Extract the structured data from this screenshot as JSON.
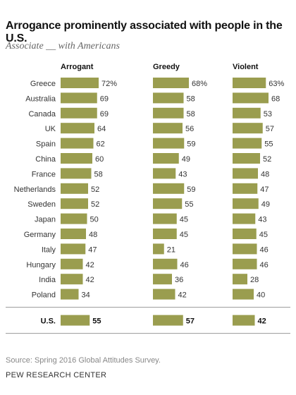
{
  "title": "Arrogance prominently associated with people in the U.S.",
  "subtitle": "Associate __ with Americans",
  "chart_data": {
    "type": "bar",
    "categories": [
      "Greece",
      "Australia",
      "Canada",
      "UK",
      "Spain",
      "China",
      "France",
      "Netherlands",
      "Sweden",
      "Japan",
      "Germany",
      "Italy",
      "Hungary",
      "India",
      "Poland"
    ],
    "series": [
      {
        "name": "Arrogant",
        "values": [
          72,
          69,
          69,
          64,
          62,
          60,
          58,
          52,
          52,
          50,
          48,
          47,
          42,
          42,
          34
        ],
        "labels": [
          "72%",
          "69",
          "69",
          "64",
          "62",
          "60",
          "58",
          "52",
          "52",
          "50",
          "48",
          "47",
          "42",
          "42",
          "34"
        ]
      },
      {
        "name": "Greedy",
        "values": [
          68,
          58,
          58,
          56,
          59,
          49,
          43,
          59,
          55,
          45,
          45,
          21,
          46,
          36,
          42
        ],
        "labels": [
          "68%",
          "58",
          "58",
          "56",
          "59",
          "49",
          "43",
          "59",
          "55",
          "45",
          "45",
          "21",
          "46",
          "36",
          "42"
        ]
      },
      {
        "name": "Violent",
        "values": [
          63,
          68,
          53,
          57,
          55,
          52,
          48,
          47,
          49,
          43,
          45,
          46,
          46,
          28,
          40
        ],
        "labels": [
          "63%",
          "68",
          "53",
          "57",
          "55",
          "52",
          "48",
          "47",
          "49",
          "43",
          "45",
          "46",
          "46",
          "28",
          "40"
        ]
      }
    ],
    "total": {
      "category": "U.S.",
      "values": [
        55,
        57,
        42
      ],
      "labels": [
        "55",
        "57",
        "42"
      ]
    },
    "bar_color": "#9a9d4f"
  },
  "footer": {
    "source": "Source: Spring 2016 Global Attitudes Survey.",
    "org": "PEW RESEARCH CENTER"
  }
}
